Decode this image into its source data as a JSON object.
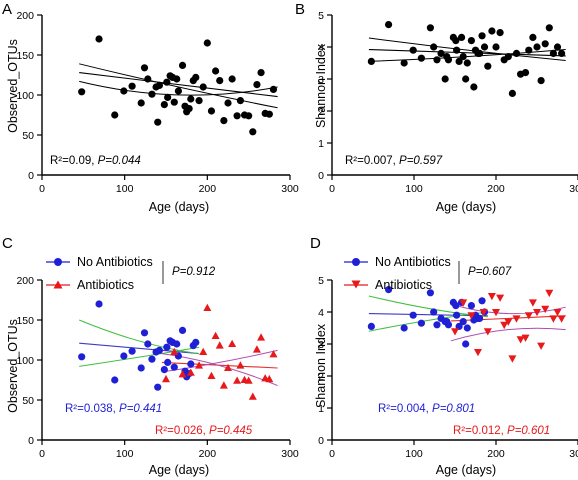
{
  "chart_data": [
    {
      "panel": "A",
      "type": "scatter",
      "xlabel": "Age (days)",
      "ylabel": "Observed_OTUs",
      "xlim": [
        0,
        300
      ],
      "ylim": [
        0,
        200
      ],
      "xticks": [
        "0",
        "100",
        "200",
        "300"
      ],
      "yticks": [
        "0",
        "50",
        "100",
        "150",
        "200"
      ],
      "series": [
        {
          "marker": "circle",
          "color": "#000000",
          "x": [
            48,
            69,
            88,
            99,
            109,
            120,
            124,
            128,
            133,
            138,
            140,
            142,
            148,
            151,
            152,
            155,
            158,
            160,
            163,
            165,
            170,
            173,
            175,
            178,
            180,
            183,
            186,
            190,
            195,
            200,
            205,
            210,
            215,
            220,
            225,
            230,
            236,
            240,
            245,
            250,
            255,
            260,
            265,
            270,
            275,
            280
          ],
          "y": [
            104,
            170,
            75,
            105,
            111,
            90,
            134,
            120,
            101,
            110,
            66,
            112,
            88,
            116,
            97,
            124,
            122,
            91,
            120,
            105,
            137,
            86,
            79,
            83,
            95,
            118,
            122,
            93,
            110,
            165,
            80,
            130,
            118,
            68,
            90,
            120,
            74,
            93,
            75,
            74,
            54,
            113,
            128,
            77,
            76,
            107
          ]
        }
      ],
      "fits": [
        {
          "kind": "line",
          "x": [
            45,
            285
          ],
          "y": [
            128,
            98
          ]
        },
        {
          "kind": "ci",
          "x": [
            45,
            165,
            285
          ],
          "y": [
            139,
            110,
            84
          ]
        },
        {
          "kind": "ci",
          "x": [
            45,
            165,
            285
          ],
          "y": [
            117,
            100,
            110
          ]
        }
      ],
      "annotation": {
        "r2": "R²=0.09, ",
        "p": "P=0.044"
      }
    },
    {
      "panel": "B",
      "type": "scatter",
      "xlabel": "Age (days)",
      "ylabel": "Shannon Index",
      "xlim": [
        0,
        300
      ],
      "ylim": [
        0,
        5
      ],
      "xticks": [
        "0",
        "100",
        "200",
        "300"
      ],
      "yticks": [
        "0",
        "1",
        "2",
        "3",
        "4",
        "5"
      ],
      "series": [
        {
          "marker": "circle",
          "color": "#000000",
          "x": [
            48,
            69,
            88,
            99,
            109,
            120,
            124,
            128,
            133,
            138,
            140,
            142,
            148,
            151,
            152,
            155,
            158,
            160,
            163,
            165,
            170,
            173,
            175,
            178,
            180,
            183,
            186,
            190,
            195,
            200,
            205,
            210,
            215,
            220,
            225,
            230,
            236,
            240,
            245,
            250,
            255,
            260,
            265,
            270,
            275,
            280
          ],
          "y": [
            3.55,
            4.7,
            3.5,
            3.9,
            3.65,
            4.6,
            4.0,
            3.6,
            3.8,
            3.0,
            3.7,
            3.6,
            4.3,
            4.2,
            3.9,
            3.55,
            4.3,
            3.7,
            3.0,
            3.5,
            4.2,
            2.75,
            3.9,
            3.8,
            3.8,
            4.35,
            4.0,
            3.4,
            4.5,
            4.0,
            4.45,
            3.6,
            3.7,
            2.55,
            3.8,
            3.15,
            3.2,
            3.9,
            4.3,
            4.0,
            2.95,
            4.1,
            4.6,
            3.8,
            4.0,
            3.8
          ]
        }
      ],
      "fits": [
        {
          "kind": "line",
          "x": [
            45,
            285
          ],
          "y": [
            3.92,
            3.72
          ]
        },
        {
          "kind": "ci",
          "x": [
            45,
            165,
            285
          ],
          "y": [
            4.28,
            3.9,
            3.58
          ]
        },
        {
          "kind": "ci",
          "x": [
            45,
            165,
            285
          ],
          "y": [
            3.55,
            3.7,
            3.92
          ]
        }
      ],
      "annotation": {
        "r2": "R²=0.007, ",
        "p": "P=0.597"
      }
    },
    {
      "panel": "C",
      "type": "scatter",
      "xlabel": "Age (days)",
      "ylabel": "Observed_OTUs",
      "xlim": [
        0,
        300
      ],
      "ylim": [
        0,
        200
      ],
      "xticks": [
        "0",
        "100",
        "200",
        "300"
      ],
      "yticks": [
        "0",
        "50",
        "100",
        "150",
        "200"
      ],
      "legend_placement": "top-left",
      "group_p": "P=0.912",
      "series": [
        {
          "name": "No Antibiotics",
          "marker": "circle",
          "color": "#1f1fd6",
          "x": [
            48,
            69,
            88,
            99,
            109,
            120,
            124,
            128,
            133,
            138,
            140,
            142,
            148,
            151,
            152,
            155,
            158,
            160,
            163,
            165,
            170,
            173,
            175,
            178,
            180,
            183,
            186
          ],
          "y": [
            104,
            170,
            75,
            105,
            111,
            90,
            134,
            120,
            101,
            110,
            66,
            112,
            88,
            116,
            97,
            124,
            122,
            91,
            120,
            105,
            137,
            86,
            79,
            83,
            95,
            118,
            122
          ]
        },
        {
          "name": "Antibiotics",
          "marker": "triangle-up",
          "color": "#e8191a",
          "x": [
            150,
            160,
            170,
            180,
            190,
            195,
            200,
            205,
            210,
            215,
            220,
            225,
            230,
            236,
            240,
            245,
            250,
            255,
            260,
            265,
            270,
            275,
            280
          ],
          "y": [
            76,
            110,
            82,
            84,
            93,
            110,
            165,
            80,
            130,
            118,
            68,
            90,
            120,
            74,
            93,
            75,
            74,
            54,
            113,
            128,
            77,
            76,
            107
          ]
        }
      ],
      "fits": [
        {
          "kind": "line",
          "color": "#3c3cc8",
          "x": [
            45,
            190
          ],
          "y": [
            121,
            108
          ]
        },
        {
          "kind": "ci",
          "color": "#3fbf3f",
          "x": [
            45,
            120,
            190
          ],
          "y": [
            150,
            123,
            108
          ]
        },
        {
          "kind": "ci",
          "color": "#3fbf3f",
          "x": [
            45,
            120,
            190
          ],
          "y": [
            92,
            104,
            116
          ]
        },
        {
          "kind": "line",
          "color": "#e03030",
          "x": [
            145,
            285
          ],
          "y": [
            97,
            90
          ]
        },
        {
          "kind": "ci",
          "color": "#b24bb2",
          "x": [
            145,
            215,
            285
          ],
          "y": [
            85,
            97,
            112
          ]
        },
        {
          "kind": "ci",
          "color": "#b24bb2",
          "x": [
            145,
            215,
            285
          ],
          "y": [
            108,
            93,
            68
          ]
        }
      ],
      "annotations": [
        {
          "r2": "R²=0.038, ",
          "p": "P=0.441",
          "color": "#1f1fd6"
        },
        {
          "r2": "R²=0.026, ",
          "p": "P=0.445",
          "color": "#e8191a"
        }
      ]
    },
    {
      "panel": "D",
      "type": "scatter",
      "xlabel": "Age (days)",
      "ylabel": "Shannon Index",
      "xlim": [
        0,
        300
      ],
      "ylim": [
        0,
        5
      ],
      "xticks": [
        "0",
        "100",
        "200",
        "300"
      ],
      "yticks": [
        "0",
        "1",
        "2",
        "3",
        "4",
        "5"
      ],
      "legend_placement": "top-left",
      "group_p": "P=0.607",
      "series": [
        {
          "name": "No Antibiotics",
          "marker": "circle",
          "color": "#1f1fd6",
          "x": [
            48,
            69,
            88,
            99,
            109,
            120,
            124,
            128,
            133,
            138,
            140,
            142,
            148,
            151,
            152,
            155,
            158,
            160,
            163,
            165,
            170,
            173,
            175,
            178,
            180,
            183,
            186
          ],
          "y": [
            3.55,
            4.7,
            3.5,
            3.9,
            3.65,
            4.6,
            4.0,
            3.6,
            3.8,
            3.7,
            3.7,
            3.6,
            4.3,
            4.2,
            3.9,
            3.55,
            4.3,
            3.7,
            3.0,
            3.5,
            4.2,
            3.75,
            3.9,
            3.8,
            3.8,
            4.35,
            4.0
          ]
        },
        {
          "name": "Antibiotics",
          "marker": "triangle-down",
          "color": "#e8191a",
          "x": [
            150,
            160,
            170,
            178,
            185,
            190,
            195,
            200,
            205,
            210,
            215,
            220,
            225,
            230,
            236,
            240,
            245,
            250,
            255,
            260,
            265,
            270,
            275,
            280
          ],
          "y": [
            3.4,
            4.3,
            3.9,
            2.75,
            4.0,
            3.4,
            4.5,
            4.0,
            4.45,
            3.6,
            3.7,
            2.55,
            3.8,
            3.15,
            3.2,
            3.9,
            4.3,
            4.0,
            2.95,
            4.1,
            4.6,
            3.8,
            4.0,
            3.8
          ]
        }
      ],
      "fits": [
        {
          "kind": "line",
          "color": "#3c3cc8",
          "x": [
            45,
            190
          ],
          "y": [
            3.95,
            3.88
          ]
        },
        {
          "kind": "ci",
          "color": "#3fbf3f",
          "x": [
            45,
            120,
            190
          ],
          "y": [
            4.5,
            4.1,
            3.85
          ]
        },
        {
          "kind": "ci",
          "color": "#3fbf3f",
          "x": [
            45,
            120,
            190
          ],
          "y": [
            3.4,
            3.75,
            4.0
          ]
        },
        {
          "kind": "line",
          "color": "#e03030",
          "x": [
            145,
            285
          ],
          "y": [
            3.72,
            3.88
          ]
        },
        {
          "kind": "ci",
          "color": "#b24bb2",
          "x": [
            145,
            215,
            285
          ],
          "y": [
            4.25,
            3.95,
            4.15
          ]
        },
        {
          "kind": "ci",
          "color": "#b24bb2",
          "x": [
            145,
            215,
            285
          ],
          "y": [
            3.1,
            3.45,
            3.45
          ]
        }
      ],
      "annotations": [
        {
          "r2": "R²=0.004, ",
          "p": "P=0.801",
          "color": "#1f1fd6"
        },
        {
          "r2": "R²=0.012, ",
          "p": "P=0.601",
          "color": "#e8191a"
        }
      ]
    }
  ]
}
